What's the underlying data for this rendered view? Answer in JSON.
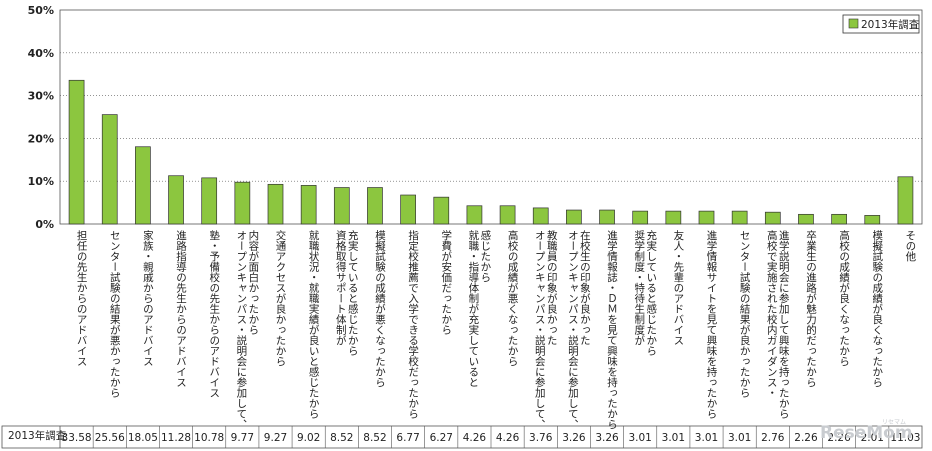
{
  "chart_data": {
    "type": "bar",
    "ylim": [
      0,
      50
    ],
    "yticks": [
      "0%",
      "10%",
      "20%",
      "30%",
      "40%",
      "50%"
    ],
    "grid": true,
    "legend_position": "top-right",
    "series": [
      {
        "name": "2013年調査",
        "color": "#8cc63f",
        "values": [
          33.58,
          25.56,
          18.05,
          11.28,
          10.78,
          9.77,
          9.27,
          9.02,
          8.52,
          8.52,
          6.77,
          6.27,
          4.26,
          4.26,
          3.76,
          3.26,
          3.26,
          3.01,
          3.01,
          3.01,
          3.01,
          2.76,
          2.26,
          2.26,
          2.01,
          11.03
        ]
      }
    ],
    "value_labels": [
      "33.58",
      "25.56",
      "18.05",
      "11.28",
      "10.78",
      "9.77",
      "9.27",
      "9.02",
      "8.52",
      "8.52",
      "6.77",
      "6.27",
      "4.26",
      "4.26",
      "3.76",
      "3.26",
      "3.26",
      "3.01",
      "3.01",
      "3.01",
      "3.01",
      "2.76",
      "2.26",
      "2.26",
      "2.01",
      "11.03"
    ],
    "categories": [
      [
        "担任の先生からのアドバイス"
      ],
      [
        "センター試験の結果が悪かったから"
      ],
      [
        "家族・親戚からのアドバイス"
      ],
      [
        "進路指導の先生からのアドバイス"
      ],
      [
        "塾・予備校の先生からのアドバイス"
      ],
      [
        "オープンキャンパス・説明会に参加して、",
        "内容が面白かったから"
      ],
      [
        "交通アクセスが良かったから"
      ],
      [
        "就職状況・就職実績が良いと感じたから"
      ],
      [
        "資格取得サポート体制が",
        "充実していると感じたから"
      ],
      [
        "模擬試験の成績が悪くなったから"
      ],
      [
        "指定校推薦で入学できる学校だったから"
      ],
      [
        "学費が安価だったから"
      ],
      [
        "就職・指導体制が充実していると",
        "感じたから"
      ],
      [
        "高校の成績が悪くなったから"
      ],
      [
        "オープンキャンパス・説明会に参加して、",
        "教職員の印象が良かった"
      ],
      [
        "オープンキャンパス・説明会に参加して、",
        "在校生の印象が良かった"
      ],
      [
        "進学情報誌・ＤＭを見て興味を持ったから"
      ],
      [
        "奨学制度・特待生制度が",
        "充実していると感じたから"
      ],
      [
        "友人・先輩のアドバイス"
      ],
      [
        "進学情報サイトを見て興味を持ったから"
      ],
      [
        "センター試験の結果が良かったから"
      ],
      [
        "高校で実施された校内ガイダンス・",
        "進学説明会に参加して興味を持ったから"
      ],
      [
        "卒業生の進路が魅力的だったから"
      ],
      [
        "高校の成績が良くなったから"
      ],
      [
        "模擬試験の成績が良くなったから"
      ],
      [
        "その他"
      ]
    ],
    "table_row_header": "2013年調査"
  },
  "watermark": {
    "main": "ReseMom",
    "ruby": "リセマム"
  }
}
